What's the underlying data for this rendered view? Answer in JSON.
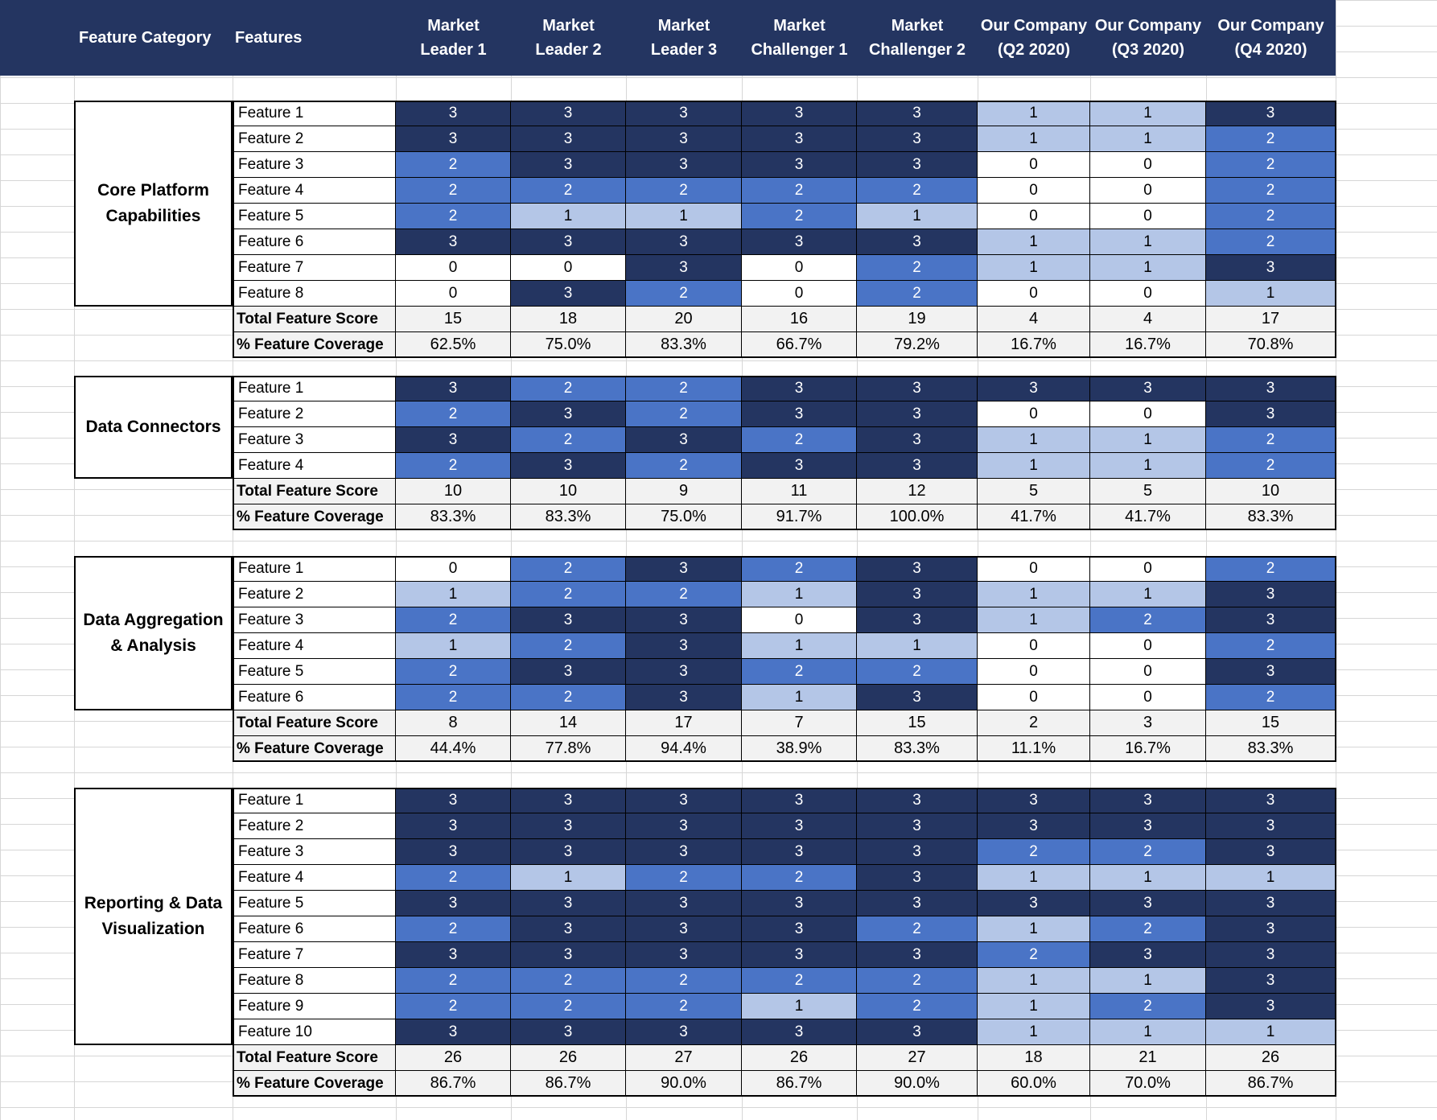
{
  "header": {
    "category_label": "Feature Category",
    "features_label": "Features",
    "columns": [
      "Market\nLeader 1",
      "Market\nLeader 2",
      "Market\nLeader 3",
      "Market\nChallenger 1",
      "Market\nChallenger 2",
      "Our Company\n(Q2 2020)",
      "Our Company\n(Q3 2020)",
      "Our Company\n(Q4 2020)"
    ]
  },
  "colors": {
    "header_bg": "#243561",
    "score_3": "#243561",
    "score_2": "#4a74c6",
    "score_1": "#b4c6e7",
    "score_0": "#ffffff",
    "total_bg": "#f2f2f2"
  },
  "labels": {
    "total": "Total Feature Score",
    "coverage": "% Feature Coverage"
  },
  "sections": [
    {
      "category": "Core Platform\nCapabilities",
      "features": [
        {
          "name": "Feature 1",
          "scores": [
            3,
            3,
            3,
            3,
            3,
            1,
            1,
            3
          ]
        },
        {
          "name": "Feature 2",
          "scores": [
            3,
            3,
            3,
            3,
            3,
            1,
            1,
            2
          ]
        },
        {
          "name": "Feature 3",
          "scores": [
            2,
            3,
            3,
            3,
            3,
            0,
            0,
            2
          ]
        },
        {
          "name": "Feature 4",
          "scores": [
            2,
            2,
            2,
            2,
            2,
            0,
            0,
            2
          ]
        },
        {
          "name": "Feature 5",
          "scores": [
            2,
            1,
            1,
            2,
            1,
            0,
            0,
            2
          ]
        },
        {
          "name": "Feature 6",
          "scores": [
            3,
            3,
            3,
            3,
            3,
            1,
            1,
            2
          ]
        },
        {
          "name": "Feature 7",
          "scores": [
            0,
            0,
            3,
            0,
            2,
            1,
            1,
            3
          ]
        },
        {
          "name": "Feature 8",
          "scores": [
            0,
            3,
            2,
            0,
            2,
            0,
            0,
            1
          ]
        }
      ],
      "totals": [
        "15",
        "18",
        "20",
        "16",
        "19",
        "4",
        "4",
        "17"
      ],
      "coverage": [
        "62.5%",
        "75.0%",
        "83.3%",
        "66.7%",
        "79.2%",
        "16.7%",
        "16.7%",
        "70.8%"
      ]
    },
    {
      "category": "Data Connectors",
      "features": [
        {
          "name": "Feature 1",
          "scores": [
            3,
            2,
            2,
            3,
            3,
            3,
            3,
            3
          ]
        },
        {
          "name": "Feature 2",
          "scores": [
            2,
            3,
            2,
            3,
            3,
            0,
            0,
            3
          ]
        },
        {
          "name": "Feature 3",
          "scores": [
            3,
            2,
            3,
            2,
            3,
            1,
            1,
            2
          ]
        },
        {
          "name": "Feature 4",
          "scores": [
            2,
            3,
            2,
            3,
            3,
            1,
            1,
            2
          ]
        }
      ],
      "totals": [
        "10",
        "10",
        "9",
        "11",
        "12",
        "5",
        "5",
        "10"
      ],
      "coverage": [
        "83.3%",
        "83.3%",
        "75.0%",
        "91.7%",
        "100.0%",
        "41.7%",
        "41.7%",
        "83.3%"
      ]
    },
    {
      "category": "Data Aggregation\n& Analysis",
      "features": [
        {
          "name": "Feature 1",
          "scores": [
            0,
            2,
            3,
            2,
            3,
            0,
            0,
            2
          ]
        },
        {
          "name": "Feature 2",
          "scores": [
            1,
            2,
            2,
            1,
            3,
            1,
            1,
            3
          ]
        },
        {
          "name": "Feature 3",
          "scores": [
            2,
            3,
            3,
            0,
            3,
            1,
            2,
            3
          ]
        },
        {
          "name": "Feature 4",
          "scores": [
            1,
            2,
            3,
            1,
            1,
            0,
            0,
            2
          ]
        },
        {
          "name": "Feature 5",
          "scores": [
            2,
            3,
            3,
            2,
            2,
            0,
            0,
            3
          ]
        },
        {
          "name": "Feature 6",
          "scores": [
            2,
            2,
            3,
            1,
            3,
            0,
            0,
            2
          ]
        }
      ],
      "totals": [
        "8",
        "14",
        "17",
        "7",
        "15",
        "2",
        "3",
        "15"
      ],
      "coverage": [
        "44.4%",
        "77.8%",
        "94.4%",
        "38.9%",
        "83.3%",
        "11.1%",
        "16.7%",
        "83.3%"
      ]
    },
    {
      "category": "Reporting & Data\nVisualization",
      "features": [
        {
          "name": "Feature 1",
          "scores": [
            3,
            3,
            3,
            3,
            3,
            3,
            3,
            3
          ]
        },
        {
          "name": "Feature 2",
          "scores": [
            3,
            3,
            3,
            3,
            3,
            3,
            3,
            3
          ]
        },
        {
          "name": "Feature 3",
          "scores": [
            3,
            3,
            3,
            3,
            3,
            2,
            2,
            3
          ]
        },
        {
          "name": "Feature 4",
          "scores": [
            2,
            1,
            2,
            2,
            3,
            1,
            1,
            1
          ]
        },
        {
          "name": "Feature 5",
          "scores": [
            3,
            3,
            3,
            3,
            3,
            3,
            3,
            3
          ]
        },
        {
          "name": "Feature 6",
          "scores": [
            2,
            3,
            3,
            3,
            2,
            1,
            2,
            3
          ]
        },
        {
          "name": "Feature 7",
          "scores": [
            3,
            3,
            3,
            3,
            3,
            2,
            3,
            3
          ]
        },
        {
          "name": "Feature 8",
          "scores": [
            2,
            2,
            2,
            2,
            2,
            1,
            1,
            3
          ]
        },
        {
          "name": "Feature 9",
          "scores": [
            2,
            2,
            2,
            1,
            2,
            1,
            2,
            3
          ]
        },
        {
          "name": "Feature 10",
          "scores": [
            3,
            3,
            3,
            3,
            3,
            1,
            1,
            1
          ]
        }
      ],
      "totals": [
        "26",
        "26",
        "27",
        "26",
        "27",
        "18",
        "21",
        "26"
      ],
      "coverage": [
        "86.7%",
        "86.7%",
        "90.0%",
        "86.7%",
        "90.0%",
        "60.0%",
        "70.0%",
        "86.7%"
      ]
    }
  ]
}
